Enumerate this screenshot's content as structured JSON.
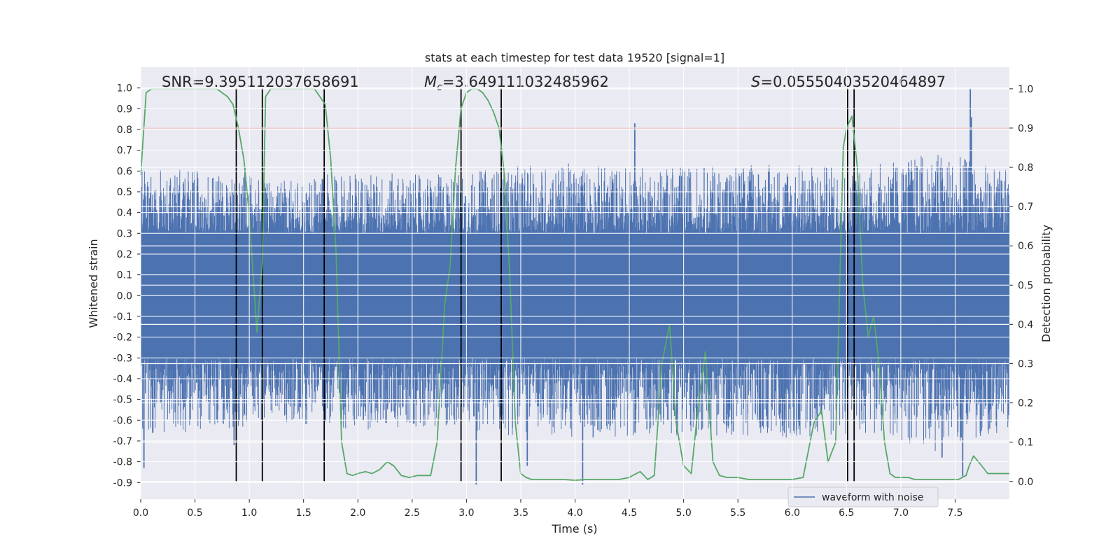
{
  "chart_data": {
    "type": "line",
    "title": "stats at each timestep for test data 19520 [signal=1]",
    "xlabel": "Time (s)",
    "ylabel": "Whitened strain",
    "y2label": "Detection probability",
    "xlim": [
      0.0,
      8.0
    ],
    "ylim": [
      -0.98,
      1.1
    ],
    "y2lim": [
      -0.045,
      1.055
    ],
    "x_ticks": [
      "0.0",
      "0.5",
      "1.0",
      "1.5",
      "2.0",
      "2.5",
      "3.0",
      "3.5",
      "4.0",
      "4.5",
      "5.0",
      "5.5",
      "6.0",
      "6.5",
      "7.0",
      "7.5"
    ],
    "y_ticks": [
      "1.0",
      "0.9",
      "0.8",
      "0.7",
      "0.6",
      "0.5",
      "0.4",
      "0.3",
      "0.2",
      "0.1",
      "0.0",
      "-0.1",
      "-0.2",
      "-0.3",
      "-0.4",
      "-0.5",
      "-0.6",
      "-0.7",
      "-0.8",
      "-0.9"
    ],
    "y2_ticks": [
      "1.0",
      "0.9",
      "0.8",
      "0.7",
      "0.6",
      "0.5",
      "0.4",
      "0.3",
      "0.2",
      "0.1",
      "0.0"
    ],
    "annotations": {
      "snr": "SNR=9.395112037658691",
      "mc_symbol": "M",
      "mc_sub": "c",
      "mc_value": "=3.649111032485962",
      "s_symbol": "S",
      "s_value": "=0.05550403520464897"
    },
    "legend": {
      "label": "waveform with noise",
      "placement": "lower-right"
    },
    "threshold": {
      "value": 0.9,
      "axis": "right",
      "color": "#c44e52"
    },
    "event_markers_x": [
      0.88,
      1.12,
      1.69,
      2.95,
      3.32,
      6.51,
      6.57
    ],
    "waveform": {
      "name": "waveform with noise",
      "color": "#4c72b0",
      "samples": 3200,
      "core_band": [
        -0.3,
        0.3
      ],
      "envelope_max": [
        0.62,
        0.6,
        0.56,
        0.6,
        0.58,
        0.62,
        0.64,
        0.62,
        0.63,
        0.64,
        0.62,
        0.7,
        0.6
      ],
      "peaks": [
        {
          "x": 0.03,
          "y": -0.83
        },
        {
          "x": 0.86,
          "y": -0.72
        },
        {
          "x": 0.96,
          "y": 0.62
        },
        {
          "x": 3.09,
          "y": -0.91
        },
        {
          "x": 3.56,
          "y": -0.82
        },
        {
          "x": 4.07,
          "y": -0.91
        },
        {
          "x": 4.55,
          "y": 0.83
        },
        {
          "x": 7.38,
          "y": -0.78
        },
        {
          "x": 7.57,
          "y": -0.87
        },
        {
          "x": 7.64,
          "y": 1.0
        },
        {
          "x": 7.65,
          "y": 0.86
        }
      ]
    },
    "series": [
      {
        "name": "detection probability",
        "axis": "right",
        "color": "#55a868",
        "x": [
          0.0,
          0.05,
          0.1,
          0.15,
          0.2,
          0.3,
          0.4,
          0.5,
          0.6,
          0.65,
          0.7,
          0.75,
          0.8,
          0.85,
          0.9,
          0.95,
          1.0,
          1.03,
          1.07,
          1.12,
          1.15,
          1.2,
          1.3,
          1.4,
          1.5,
          1.6,
          1.65,
          1.7,
          1.75,
          1.8,
          1.85,
          1.9,
          1.95,
          2.0,
          2.07,
          2.13,
          2.2,
          2.27,
          2.33,
          2.4,
          2.47,
          2.55,
          2.67,
          2.73,
          2.8,
          2.85,
          2.9,
          2.95,
          3.0,
          3.05,
          3.1,
          3.15,
          3.2,
          3.25,
          3.3,
          3.35,
          3.4,
          3.45,
          3.5,
          3.55,
          3.6,
          3.7,
          3.8,
          3.9,
          4.0,
          4.1,
          4.2,
          4.3,
          4.4,
          4.5,
          4.53,
          4.6,
          4.67,
          4.73,
          4.8,
          4.87,
          4.93,
          5.0,
          5.07,
          5.13,
          5.2,
          5.27,
          5.33,
          5.4,
          5.5,
          5.6,
          5.7,
          5.8,
          5.9,
          6.0,
          6.1,
          6.2,
          6.27,
          6.33,
          6.4,
          6.47,
          6.5,
          6.55,
          6.6,
          6.65,
          6.7,
          6.75,
          6.8,
          6.85,
          6.9,
          6.95,
          7.0,
          7.07,
          7.13,
          7.2,
          7.27,
          7.33,
          7.4,
          7.47,
          7.53,
          7.6,
          7.63,
          7.67,
          7.73,
          7.8,
          7.87,
          7.93,
          8.0
        ],
        "values": [
          0.78,
          0.99,
          1.0,
          1.0,
          1.0,
          1.0,
          1.0,
          1.0,
          1.0,
          1.0,
          1.0,
          0.99,
          0.98,
          0.96,
          0.9,
          0.82,
          0.68,
          0.55,
          0.38,
          0.56,
          0.98,
          1.0,
          1.0,
          1.0,
          1.0,
          1.0,
          0.98,
          0.96,
          0.82,
          0.58,
          0.1,
          0.02,
          0.015,
          0.02,
          0.025,
          0.02,
          0.03,
          0.05,
          0.04,
          0.015,
          0.01,
          0.015,
          0.015,
          0.1,
          0.45,
          0.55,
          0.8,
          0.95,
          0.99,
          1.0,
          1.0,
          0.99,
          0.97,
          0.94,
          0.9,
          0.78,
          0.52,
          0.15,
          0.02,
          0.01,
          0.005,
          0.005,
          0.005,
          0.005,
          0.003,
          0.005,
          0.005,
          0.005,
          0.005,
          0.01,
          0.015,
          0.025,
          0.005,
          0.015,
          0.3,
          0.4,
          0.15,
          0.04,
          0.02,
          0.18,
          0.33,
          0.05,
          0.015,
          0.01,
          0.01,
          0.005,
          0.005,
          0.005,
          0.005,
          0.005,
          0.01,
          0.15,
          0.18,
          0.05,
          0.1,
          0.85,
          0.9,
          0.93,
          0.8,
          0.5,
          0.37,
          0.42,
          0.3,
          0.1,
          0.02,
          0.01,
          0.01,
          0.01,
          0.005,
          0.005,
          0.005,
          0.005,
          0.005,
          0.005,
          0.005,
          0.015,
          0.04,
          0.065,
          0.045,
          0.02,
          0.02,
          0.02,
          0.02
        ]
      }
    ]
  }
}
